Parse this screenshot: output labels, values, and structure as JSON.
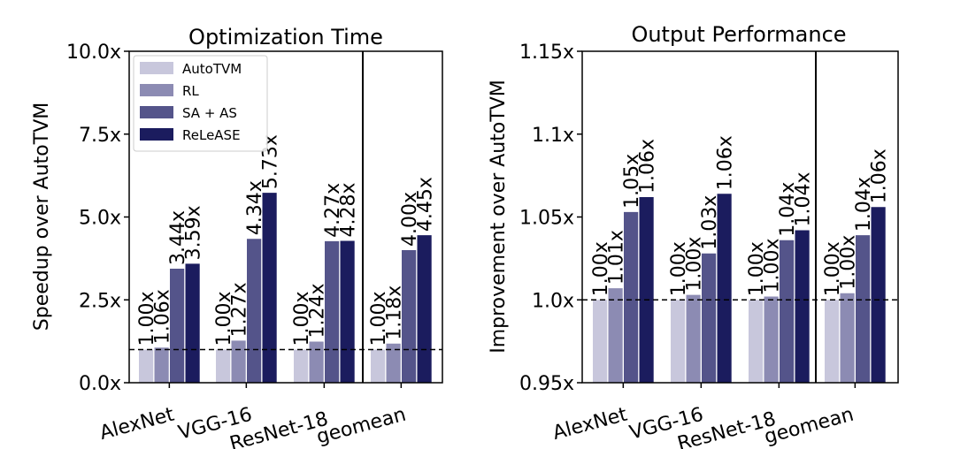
{
  "chart_data": [
    {
      "type": "bar",
      "title": "Optimization Time",
      "xlabel": "",
      "ylabel": "Speedup over AutoTVM",
      "ylim": [
        0,
        10
      ],
      "yticks": [
        "0.0x",
        "2.5x",
        "5.0x",
        "7.5x",
        "10.0x"
      ],
      "ytick_values": [
        0,
        2.5,
        5,
        7.5,
        10
      ],
      "reference_line": 1.0,
      "categories": [
        "AlexNet",
        "VGG-16",
        "ResNet-18",
        "geomean"
      ],
      "separator_before_category": 3,
      "legend_position": "top-left",
      "series": [
        {
          "name": "AutoTVM",
          "color": "#c8c7dc",
          "values": [
            1.0,
            1.0,
            1.0,
            1.0
          ],
          "labels": [
            "1.00x",
            "1.00x",
            "1.00x",
            "1.00x"
          ]
        },
        {
          "name": "RL",
          "color": "#8c8bb3",
          "values": [
            1.06,
            1.27,
            1.24,
            1.18
          ],
          "labels": [
            "1.06x",
            "1.27x",
            "1.24x",
            "1.18x"
          ]
        },
        {
          "name": "SA + AS",
          "color": "#54548a",
          "values": [
            3.44,
            4.34,
            4.27,
            4.0
          ],
          "labels": [
            "3.44x",
            "4.34x",
            "4.27x",
            "4.00x"
          ]
        },
        {
          "name": "ReLeASE",
          "color": "#1b1c5e",
          "values": [
            3.59,
            5.73,
            4.28,
            4.45
          ],
          "labels": [
            "3.59x",
            "5.73x",
            "4.28x",
            "4.45x"
          ]
        }
      ]
    },
    {
      "type": "bar",
      "title": "Output Performance",
      "xlabel": "",
      "ylabel": "Improvement over AutoTVM",
      "ylim": [
        0.95,
        1.15
      ],
      "yticks": [
        "0.95x",
        "1.0x",
        "1.05x",
        "1.1x",
        "1.15x"
      ],
      "ytick_values": [
        0.95,
        1.0,
        1.05,
        1.1,
        1.15
      ],
      "reference_line": 1.0,
      "categories": [
        "AlexNet",
        "VGG-16",
        "ResNet-18",
        "geomean"
      ],
      "separator_before_category": 3,
      "series": [
        {
          "name": "AutoTVM",
          "color": "#c8c7dc",
          "values": [
            1.0,
            1.0,
            1.0,
            1.0
          ],
          "labels": [
            "1.00x",
            "1.00x",
            "1.00x",
            "1.00x"
          ]
        },
        {
          "name": "RL",
          "color": "#8c8bb3",
          "values": [
            1.007,
            1.003,
            1.002,
            1.004
          ],
          "labels": [
            "1.01x",
            "1.00x",
            "1.00x",
            "1.00x"
          ]
        },
        {
          "name": "SA + AS",
          "color": "#54548a",
          "values": [
            1.053,
            1.028,
            1.036,
            1.039
          ],
          "labels": [
            "1.05x",
            "1.03x",
            "1.04x",
            "1.04x"
          ]
        },
        {
          "name": "ReLeASE",
          "color": "#1b1c5e",
          "values": [
            1.062,
            1.064,
            1.042,
            1.056
          ],
          "labels": [
            "1.06x",
            "1.06x",
            "1.04x",
            "1.06x"
          ]
        }
      ]
    }
  ]
}
